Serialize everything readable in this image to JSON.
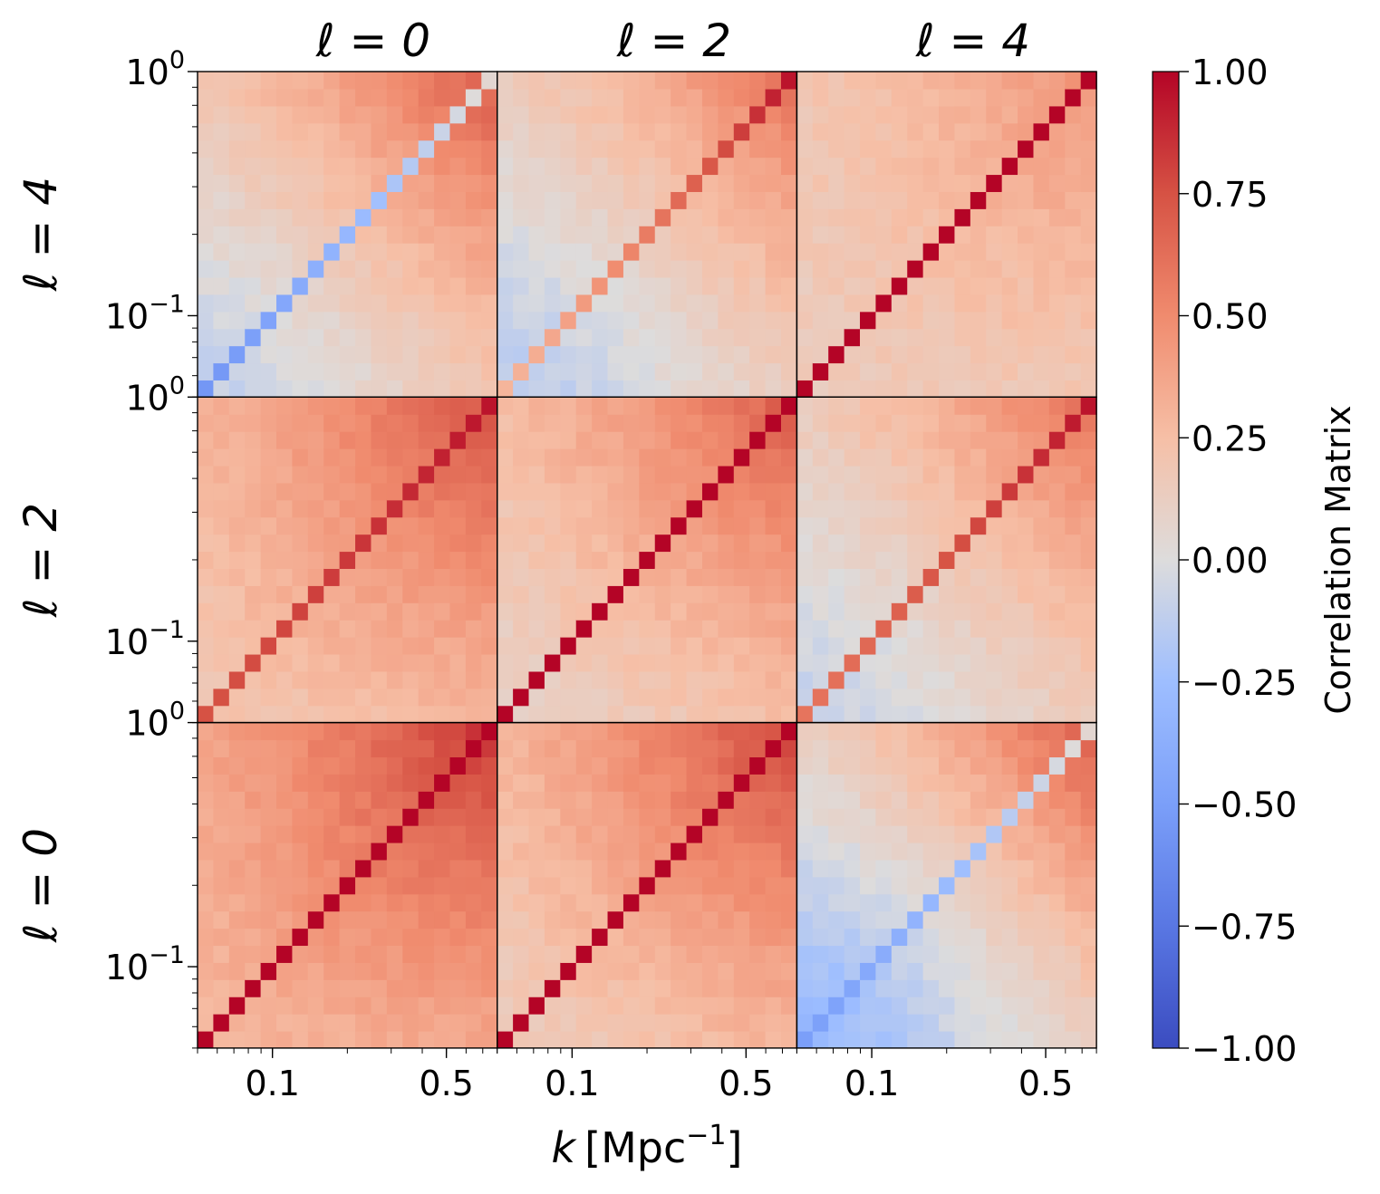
{
  "chart_data": {
    "type": "heatmap",
    "title": "",
    "xlabel": "k [Mpc⁻¹]",
    "xlabel_parts": {
      "var": "k",
      "unit": "[Mpc",
      "exp": "−1",
      "close": "]"
    },
    "ylabel": "",
    "n_bins": 19,
    "k_range": [
      0.05,
      0.8
    ],
    "x_ticks": [
      0.1,
      0.5
    ],
    "x_tick_labels": [
      "0.1",
      "0.5"
    ],
    "y_tick_labels": [
      {
        "base": "10",
        "exp": "0"
      },
      {
        "base": "10",
        "exp": "−1"
      }
    ],
    "column_titles": [
      "ℓ = 0",
      "ℓ = 2",
      "ℓ = 4"
    ],
    "row_titles": [
      "ℓ = 4",
      "ℓ = 2",
      "ℓ = 0"
    ],
    "multipoles": [
      "ℓ = 0",
      "ℓ = 2",
      "ℓ = 4"
    ],
    "colorbar": {
      "label": "Correlation Matrix",
      "colormap": "coolwarm",
      "vmin": -1.0,
      "vmax": 1.0,
      "ticks": [
        1.0,
        0.75,
        0.5,
        0.25,
        0.0,
        -0.25,
        -0.5,
        -0.75,
        -1.0
      ],
      "tick_labels": [
        "1.00",
        "0.75",
        "0.50",
        "0.25",
        "0.00",
        "−0.25",
        "−0.50",
        "−0.75",
        "−1.00"
      ]
    },
    "blocks": [
      {
        "row": "ℓ = 4",
        "col": "ℓ = 0",
        "offdiag_low_k": -0.1,
        "offdiag_high_k": 0.7,
        "diag": -0.55,
        "note": "negative diagonal at low k, strong positive high-k corner"
      },
      {
        "row": "ℓ = 4",
        "col": "ℓ = 2",
        "offdiag_low_k": -0.15,
        "offdiag_high_k": 0.6,
        "diag": 0.3,
        "note": "diagonal rises from ~0.1 at low k to ~0.95 at high k"
      },
      {
        "row": "ℓ = 4",
        "col": "ℓ = 4",
        "offdiag_low_k": 0.15,
        "offdiag_high_k": 0.45,
        "diag": 1.0,
        "note": "auto-correlation, unit diagonal"
      },
      {
        "row": "ℓ = 2",
        "col": "ℓ = 0",
        "offdiag_low_k": 0.2,
        "offdiag_high_k": 0.75,
        "diag": 0.75,
        "note": "positive, strengthening toward high k"
      },
      {
        "row": "ℓ = 2",
        "col": "ℓ = 2",
        "offdiag_low_k": 0.1,
        "offdiag_high_k": 0.7,
        "diag": 1.0,
        "note": "auto-correlation, unit diagonal"
      },
      {
        "row": "ℓ = 2",
        "col": "ℓ = 4",
        "offdiag_low_k": -0.1,
        "offdiag_high_k": 0.6,
        "diag": 0.6,
        "note": "negative lower-right band, positive upper band"
      },
      {
        "row": "ℓ = 0",
        "col": "ℓ = 0",
        "offdiag_low_k": 0.3,
        "offdiag_high_k": 0.85,
        "diag": 1.0,
        "note": "auto-correlation, unit diagonal"
      },
      {
        "row": "ℓ = 0",
        "col": "ℓ = 2",
        "offdiag_low_k": 0.15,
        "offdiag_high_k": 0.8,
        "diag": 1.0,
        "note": "strong positive at high k"
      },
      {
        "row": "ℓ = 0",
        "col": "ℓ = 4",
        "offdiag_low_k": -0.3,
        "offdiag_high_k": 0.7,
        "diag": -0.5,
        "note": "negative lower band, positive upper band"
      }
    ]
  }
}
